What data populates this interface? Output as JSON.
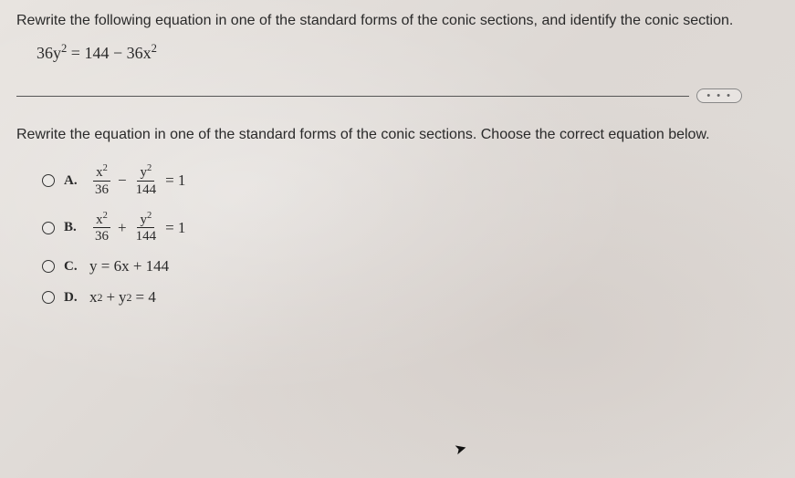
{
  "question1": "Rewrite the following equation in one of the standard forms of the conic sections, and identify the conic section.",
  "main_equation": {
    "lhs_coef": "36y",
    "lhs_exp": "2",
    "rhs_a": "144",
    "rhs_op": "−",
    "rhs_b_coef": "36x",
    "rhs_b_exp": "2"
  },
  "dots": "• • •",
  "question2": "Rewrite the equation in one of the standard forms of the conic sections. Choose the correct equation below.",
  "options": {
    "A": {
      "label": "A.",
      "f1_num": "x",
      "f1_exp": "2",
      "f1_den": "36",
      "op": "−",
      "f2_num": "y",
      "f2_exp": "2",
      "f2_den": "144",
      "eq": "= 1"
    },
    "B": {
      "label": "B.",
      "f1_num": "x",
      "f1_exp": "2",
      "f1_den": "36",
      "op": "+",
      "f2_num": "y",
      "f2_exp": "2",
      "f2_den": "144",
      "eq": "= 1"
    },
    "C": {
      "label": "C.",
      "text": "y = 6x + 144"
    },
    "D": {
      "label": "D.",
      "lhs_a": "x",
      "lhs_a_exp": "2",
      "op": "+",
      "lhs_b": "y",
      "lhs_b_exp": "2",
      "eq": "= 4"
    }
  },
  "colors": {
    "text": "#2a2a2a",
    "bg": "#e0dcd8",
    "border": "#555"
  }
}
